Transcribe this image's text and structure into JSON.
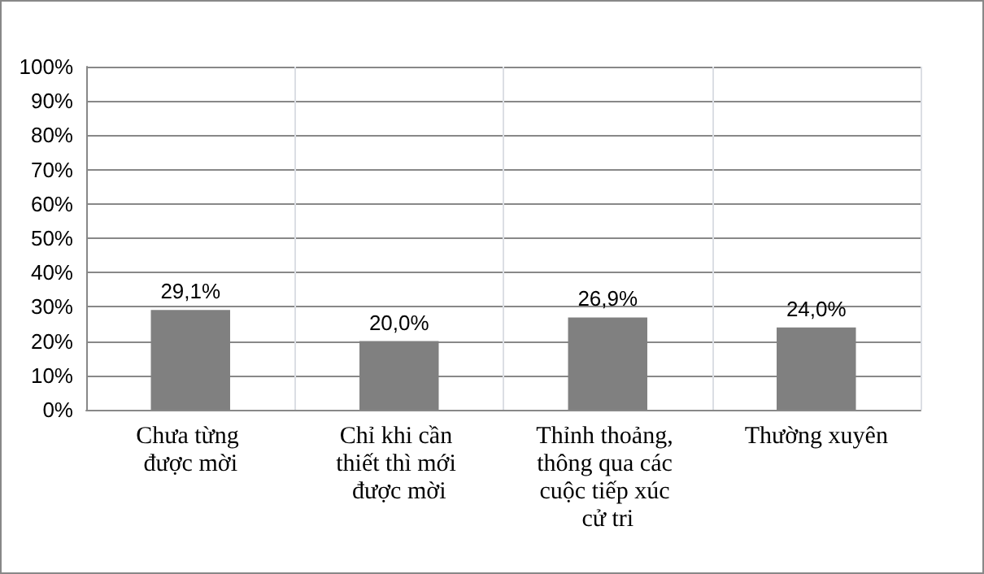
{
  "chart_data": {
    "type": "bar",
    "categories": [
      "Chưa từng được mời",
      "Chỉ khi cần thiết thì mới được mời",
      "Thỉnh thoảng, thông qua các cuộc tiếp xúc cử tri",
      "Thường xuyên"
    ],
    "values": [
      29.1,
      20.0,
      26.9,
      24.0
    ],
    "value_labels": [
      "29,1%",
      "20,0%",
      "26,9%",
      "24,0%"
    ],
    "color": "#808080",
    "ylim": [
      0,
      100
    ],
    "yticks": [
      {
        "value": 0,
        "label": "0%"
      },
      {
        "value": 10,
        "label": "10%"
      },
      {
        "value": 20,
        "label": "20%"
      },
      {
        "value": 30,
        "label": "30%"
      },
      {
        "value": 40,
        "label": "40%"
      },
      {
        "value": 50,
        "label": "50%"
      },
      {
        "value": 60,
        "label": "60%"
      },
      {
        "value": 70,
        "label": "70%"
      },
      {
        "value": 80,
        "label": "80%"
      },
      {
        "value": 90,
        "label": "90%"
      },
      {
        "value": 100,
        "label": "100%"
      }
    ],
    "grid": true
  }
}
